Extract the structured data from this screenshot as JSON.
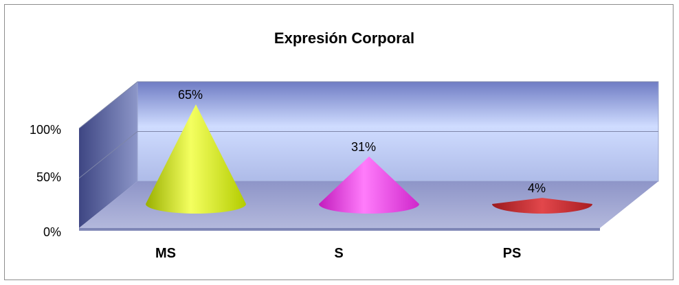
{
  "chart_data": {
    "type": "bar",
    "subtype": "3d-cone",
    "title": "Expresión Corporal",
    "xlabel": "",
    "ylabel": "",
    "categories": [
      "MS",
      "S",
      "PS"
    ],
    "values": [
      65,
      31,
      4
    ],
    "data_labels": [
      "65%",
      "31%",
      "4%"
    ],
    "y_ticks": [
      "0%",
      "50%",
      "100%"
    ],
    "ylim": [
      0,
      100
    ],
    "grid": true,
    "legend": "none",
    "colors": {
      "MS": "#d7f014",
      "S": "#ee3ee8",
      "PS": "#c1282d",
      "wall": "#b9c6f2",
      "wall_dark": "#4a5490",
      "floor": "#a6acd6",
      "gridline": "#7e86a8"
    }
  }
}
